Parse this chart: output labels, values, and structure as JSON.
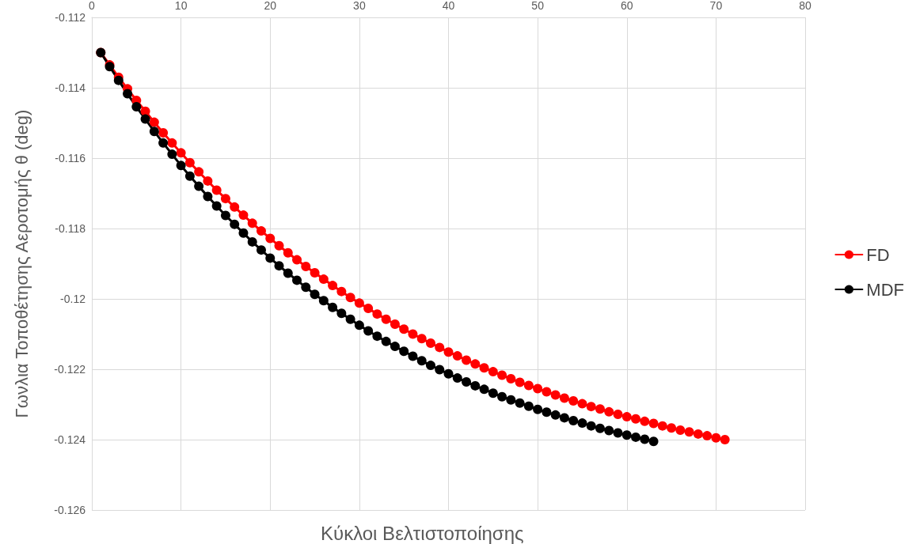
{
  "chart_data": {
    "type": "line",
    "xlabel": "Κύκλοι Βελτιστοποίησης",
    "ylabel": "Γωνλια Τοποθέτησης Αεροτομής θ (deg)",
    "xlim": [
      0,
      80
    ],
    "xticks": [
      0,
      10,
      20,
      30,
      40,
      50,
      60,
      70,
      80
    ],
    "ylim": [
      -0.126,
      -0.112
    ],
    "yticks": [
      -0.126,
      -0.124,
      -0.122,
      -0.12,
      -0.118,
      -0.116,
      -0.114,
      -0.112
    ],
    "grid": true,
    "legend": "right",
    "marker": "circle",
    "line_style": "solid",
    "series": [
      {
        "name": "FD",
        "color": "#ff0000",
        "x": [
          1,
          2,
          3,
          4,
          5,
          6,
          7,
          8,
          9,
          10,
          11,
          12,
          13,
          14,
          15,
          16,
          17,
          18,
          19,
          20,
          21,
          22,
          23,
          24,
          25,
          26,
          27,
          28,
          29,
          30,
          31,
          32,
          33,
          34,
          35,
          36,
          37,
          38,
          39,
          40,
          41,
          42,
          43,
          44,
          45,
          46,
          47,
          48,
          49,
          50,
          51,
          52,
          53,
          54,
          55,
          56,
          57,
          58,
          59,
          60,
          61,
          62,
          63,
          64,
          65,
          66,
          67,
          68,
          69,
          70,
          71
        ],
        "values": [
          -0.113,
          -0.11335,
          -0.1137,
          -0.11403,
          -0.11436,
          -0.11467,
          -0.11498,
          -0.11528,
          -0.11557,
          -0.11585,
          -0.11613,
          -0.11639,
          -0.11665,
          -0.11691,
          -0.11715,
          -0.11739,
          -0.11762,
          -0.11785,
          -0.11807,
          -0.11828,
          -0.11849,
          -0.11869,
          -0.11889,
          -0.11908,
          -0.11926,
          -0.11944,
          -0.11962,
          -0.11979,
          -0.11996,
          -0.12012,
          -0.12027,
          -0.12043,
          -0.12058,
          -0.12072,
          -0.12086,
          -0.121,
          -0.12113,
          -0.12126,
          -0.12138,
          -0.12151,
          -0.12162,
          -0.12174,
          -0.12185,
          -0.12196,
          -0.12207,
          -0.12217,
          -0.12227,
          -0.12237,
          -0.12246,
          -0.12255,
          -0.12264,
          -0.12273,
          -0.12282,
          -0.1229,
          -0.12298,
          -0.12306,
          -0.12313,
          -0.12321,
          -0.12328,
          -0.12335,
          -0.12341,
          -0.12348,
          -0.12354,
          -0.12361,
          -0.12367,
          -0.12373,
          -0.12378,
          -0.12384,
          -0.12389,
          -0.12395,
          -0.124
        ]
      },
      {
        "name": "MDF",
        "color": "#000000",
        "x": [
          1,
          2,
          3,
          4,
          5,
          6,
          7,
          8,
          9,
          10,
          11,
          12,
          13,
          14,
          15,
          16,
          17,
          18,
          19,
          20,
          21,
          22,
          23,
          24,
          25,
          26,
          27,
          28,
          29,
          30,
          31,
          32,
          33,
          34,
          35,
          36,
          37,
          38,
          39,
          40,
          41,
          42,
          43,
          44,
          45,
          46,
          47,
          48,
          49,
          50,
          51,
          52,
          53,
          54,
          55,
          56,
          57,
          58,
          59,
          60,
          61,
          62,
          63
        ],
        "values": [
          -0.113,
          -0.1134,
          -0.11379,
          -0.11417,
          -0.11454,
          -0.11489,
          -0.11524,
          -0.11557,
          -0.11589,
          -0.11621,
          -0.11651,
          -0.1168,
          -0.11709,
          -0.11736,
          -0.11763,
          -0.11788,
          -0.11813,
          -0.11838,
          -0.11861,
          -0.11884,
          -0.11906,
          -0.11927,
          -0.11947,
          -0.11967,
          -0.11987,
          -0.12005,
          -0.12024,
          -0.12041,
          -0.12058,
          -0.12075,
          -0.12091,
          -0.12106,
          -0.12121,
          -0.12135,
          -0.12149,
          -0.12163,
          -0.12176,
          -0.12189,
          -0.12201,
          -0.12213,
          -0.12225,
          -0.12236,
          -0.12247,
          -0.12257,
          -0.12268,
          -0.12278,
          -0.12287,
          -0.12296,
          -0.12305,
          -0.12314,
          -0.12322,
          -0.1233,
          -0.12338,
          -0.12346,
          -0.12353,
          -0.12361,
          -0.12368,
          -0.12374,
          -0.12381,
          -0.12387,
          -0.12393,
          -0.12399,
          -0.12405
        ]
      }
    ]
  }
}
